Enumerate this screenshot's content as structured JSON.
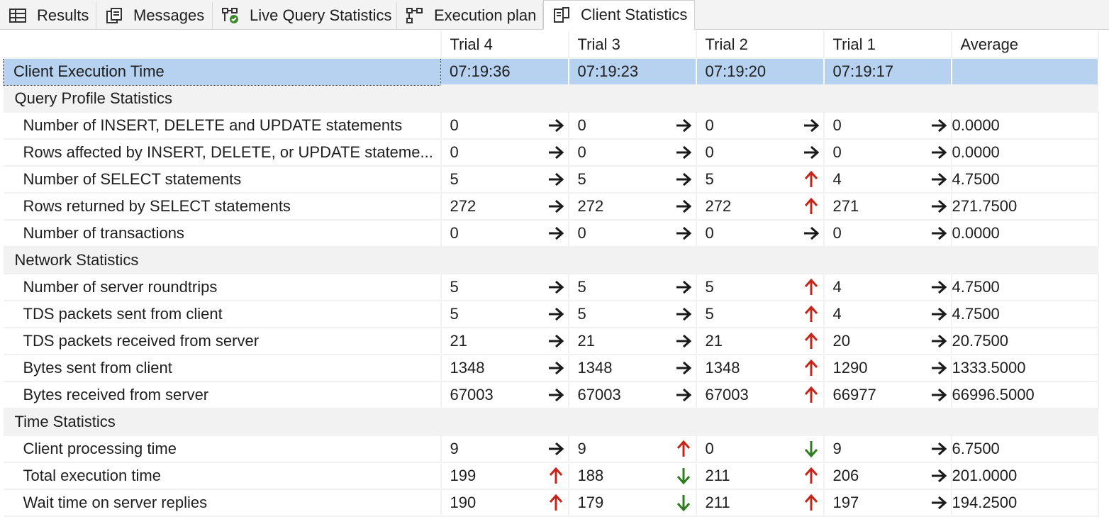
{
  "tabs": [
    {
      "label": "Results",
      "icon": "grid-icon"
    },
    {
      "label": "Messages",
      "icon": "message-icon"
    },
    {
      "label": "Live Query Statistics",
      "icon": "live-stats-icon"
    },
    {
      "label": "Execution plan",
      "icon": "execution-plan-icon"
    },
    {
      "label": "Client Statistics",
      "icon": "client-stats-icon",
      "active": true
    }
  ],
  "columns": [
    "Trial 4",
    "Trial 3",
    "Trial 2",
    "Trial 1",
    "Average"
  ],
  "colors": {
    "up": "#c8251a",
    "down": "#2e7d1e",
    "same": "#1a1a1a",
    "selected": "#b6d2f0",
    "section": "#f2f2f2"
  },
  "rows": [
    {
      "type": "selected",
      "label": "Client Execution Time",
      "values": [
        "07:19:36",
        "07:19:23",
        "07:19:20",
        "07:19:17"
      ],
      "arrows": [
        "",
        "",
        "",
        ""
      ],
      "average": ""
    },
    {
      "type": "section",
      "label": "Query Profile Statistics"
    },
    {
      "type": "row",
      "label": "Number of INSERT, DELETE and UPDATE statements",
      "values": [
        "0",
        "0",
        "0",
        "0"
      ],
      "arrows": [
        "same",
        "same",
        "same",
        "same"
      ],
      "average": "0.0000"
    },
    {
      "type": "row",
      "label": "Rows affected by INSERT, DELETE, or UPDATE stateme...",
      "values": [
        "0",
        "0",
        "0",
        "0"
      ],
      "arrows": [
        "same",
        "same",
        "same",
        "same"
      ],
      "average": "0.0000"
    },
    {
      "type": "row",
      "label": "Number of SELECT statements",
      "values": [
        "5",
        "5",
        "5",
        "4"
      ],
      "arrows": [
        "same",
        "same",
        "up",
        "same"
      ],
      "average": "4.7500"
    },
    {
      "type": "row",
      "label": "Rows returned by SELECT statements",
      "values": [
        "272",
        "272",
        "272",
        "271"
      ],
      "arrows": [
        "same",
        "same",
        "up",
        "same"
      ],
      "average": "271.7500"
    },
    {
      "type": "row",
      "label": "Number of transactions",
      "values": [
        "0",
        "0",
        "0",
        "0"
      ],
      "arrows": [
        "same",
        "same",
        "same",
        "same"
      ],
      "average": "0.0000"
    },
    {
      "type": "section",
      "label": "Network Statistics"
    },
    {
      "type": "row",
      "label": "Number of server roundtrips",
      "values": [
        "5",
        "5",
        "5",
        "4"
      ],
      "arrows": [
        "same",
        "same",
        "up",
        "same"
      ],
      "average": "4.7500"
    },
    {
      "type": "row",
      "label": "TDS packets sent from client",
      "values": [
        "5",
        "5",
        "5",
        "4"
      ],
      "arrows": [
        "same",
        "same",
        "up",
        "same"
      ],
      "average": "4.7500"
    },
    {
      "type": "row",
      "label": "TDS packets received from server",
      "values": [
        "21",
        "21",
        "21",
        "20"
      ],
      "arrows": [
        "same",
        "same",
        "up",
        "same"
      ],
      "average": "20.7500"
    },
    {
      "type": "row",
      "label": "Bytes sent from client",
      "values": [
        "1348",
        "1348",
        "1348",
        "1290"
      ],
      "arrows": [
        "same",
        "same",
        "up",
        "same"
      ],
      "average": "1333.5000"
    },
    {
      "type": "row",
      "label": "Bytes received from server",
      "values": [
        "67003",
        "67003",
        "67003",
        "66977"
      ],
      "arrows": [
        "same",
        "same",
        "up",
        "same"
      ],
      "average": "66996.5000"
    },
    {
      "type": "section",
      "label": "Time Statistics"
    },
    {
      "type": "row",
      "label": "Client processing time",
      "values": [
        "9",
        "9",
        "0",
        "9"
      ],
      "arrows": [
        "same",
        "up",
        "down",
        "same"
      ],
      "average": "6.7500"
    },
    {
      "type": "row",
      "label": "Total execution time",
      "values": [
        "199",
        "188",
        "211",
        "206"
      ],
      "arrows": [
        "up",
        "down",
        "up",
        "same"
      ],
      "average": "201.0000"
    },
    {
      "type": "row",
      "label": "Wait time on server replies",
      "values": [
        "190",
        "179",
        "211",
        "197"
      ],
      "arrows": [
        "up",
        "down",
        "up",
        "same"
      ],
      "average": "194.2500"
    }
  ]
}
